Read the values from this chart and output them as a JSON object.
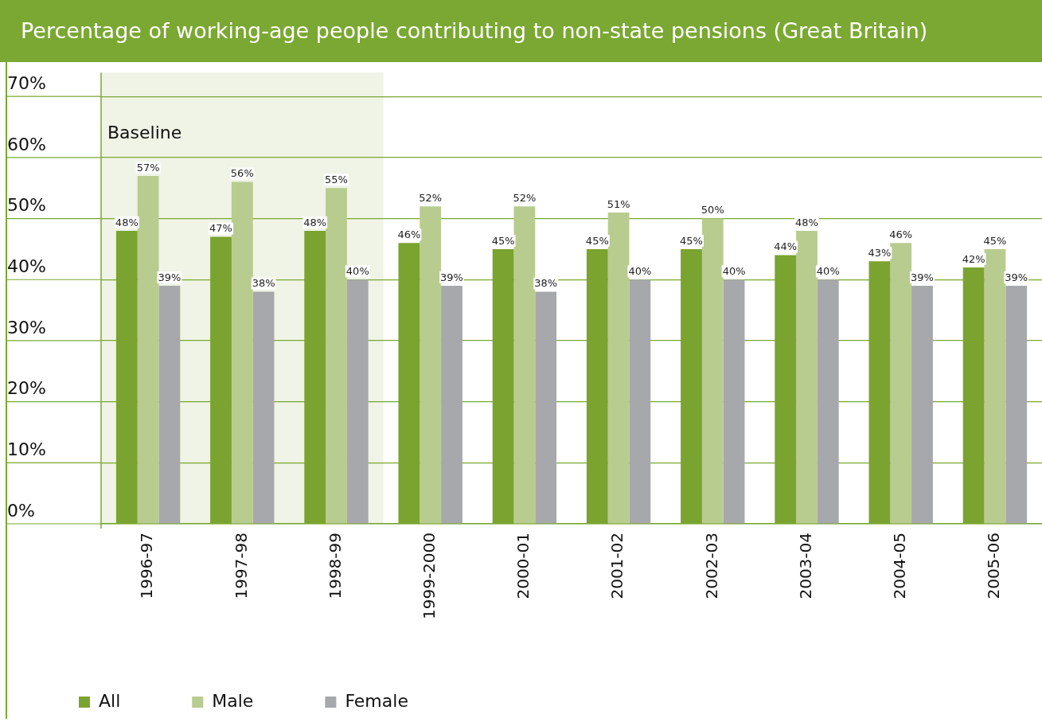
{
  "chart_data": {
    "type": "bar",
    "title": "Percentage of working-age people contributing to non-state pensions (Great Britain)",
    "categories": [
      "1996-97",
      "1997-98",
      "1998-99",
      "1999-2000",
      "2000-01",
      "2001-02",
      "2002-03",
      "2003-04",
      "2004-05",
      "2005-06"
    ],
    "series": [
      {
        "name": "All",
        "color": "#7ba32f",
        "values": [
          48,
          47,
          48,
          46,
          45,
          45,
          45,
          44,
          43,
          42
        ],
        "value_labels": [
          "48%",
          "47%",
          "48%",
          "46%",
          "45%",
          "45%",
          "45%",
          "44%",
          "43%",
          "42%"
        ]
      },
      {
        "name": "Male",
        "color": "#b8cc8f",
        "values": [
          57,
          56,
          55,
          52,
          52,
          51,
          50,
          48,
          46,
          45
        ],
        "value_labels": [
          "57%",
          "56%",
          "55%",
          "52%",
          "52%",
          "51%",
          "50%",
          "48%",
          "46%",
          "45%"
        ]
      },
      {
        "name": "Female",
        "color": "#a7a8ab",
        "values": [
          39,
          38,
          40,
          39,
          38,
          40,
          40,
          40,
          39,
          39
        ],
        "value_labels": [
          "39%",
          "38%",
          "40%",
          "39%",
          "38%",
          "40%",
          "40%",
          "40%",
          "39%",
          "39%"
        ]
      }
    ],
    "ylim": [
      0,
      70
    ],
    "yticks": [
      {
        "value": 0,
        "label": "0%"
      },
      {
        "value": 10,
        "label": "10%"
      },
      {
        "value": 20,
        "label": "20%"
      },
      {
        "value": 30,
        "label": "30%"
      },
      {
        "value": 40,
        "label": "40%"
      },
      {
        "value": 50,
        "label": "50%"
      },
      {
        "value": 60,
        "label": "60%"
      },
      {
        "value": 70,
        "label": "70%"
      }
    ],
    "bands": [
      {
        "axis": "x",
        "from": "1996-97",
        "to": "1998-99",
        "label": "Baseline",
        "color": "#7aa832"
      }
    ],
    "grid": "y",
    "legend": "bottom",
    "marker": "square"
  }
}
